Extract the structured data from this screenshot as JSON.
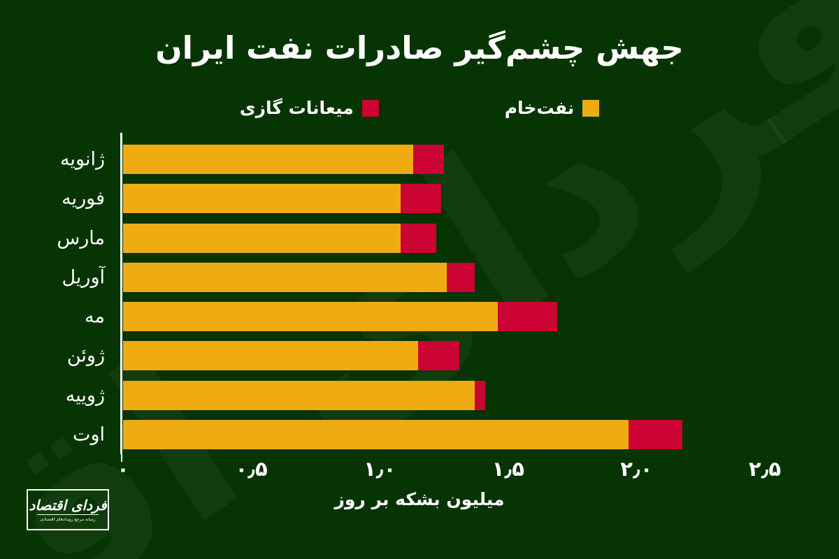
{
  "title": "جهش چشم‌گیر صادرات نفت ایران",
  "legend": {
    "crude": {
      "label": "نفت‌خام",
      "color": "#EFAB12"
    },
    "condensate": {
      "label": "میعانات گازی",
      "color": "#CB0434"
    }
  },
  "xlabel": "میلیون بشکه بر روز",
  "watermark": {
    "text": "فردای اقتصاد"
  },
  "logo": {
    "name": "فردای اقتصاد",
    "tagline": "رسانه مرجع رویدادهای اقتصادی"
  },
  "colors": {
    "background": "#073403",
    "crude": "#EFAB12",
    "condensate": "#CB0434",
    "axis": "#FFFFFF",
    "text": "#FFFFFF"
  },
  "chart_data": {
    "type": "bar",
    "orientation": "horizontal",
    "stacked": true,
    "title": "جهش چشم‌گیر صادرات نفت ایران",
    "xlabel": "میلیون بشکه بر روز",
    "ylabel": "",
    "grid": false,
    "legend_position": "top",
    "categories": [
      "ژانویه",
      "فوریه",
      "مارس",
      "آوریل",
      "مه",
      "ژوئن",
      "ژوییه",
      "اوت"
    ],
    "series": [
      {
        "name": "نفت‌خام",
        "color": "#EFAB12",
        "values": [
          1.13,
          1.08,
          1.08,
          1.26,
          1.46,
          1.15,
          1.37,
          1.97
        ]
      },
      {
        "name": "میعانات گازی",
        "color": "#CB0434",
        "values": [
          0.12,
          0.16,
          0.14,
          0.11,
          0.23,
          0.16,
          0.04,
          0.21
        ]
      }
    ],
    "xlim": [
      0,
      2.5
    ],
    "x_ticks": [
      {
        "value": 0.0,
        "label": "۰"
      },
      {
        "value": 0.5,
        "label": "۰٫۵"
      },
      {
        "value": 1.0,
        "label": "۱٫۰"
      },
      {
        "value": 1.5,
        "label": "۱٫۵"
      },
      {
        "value": 2.0,
        "label": "۲٫۰"
      },
      {
        "value": 2.5,
        "label": "۲٫۵"
      }
    ]
  }
}
